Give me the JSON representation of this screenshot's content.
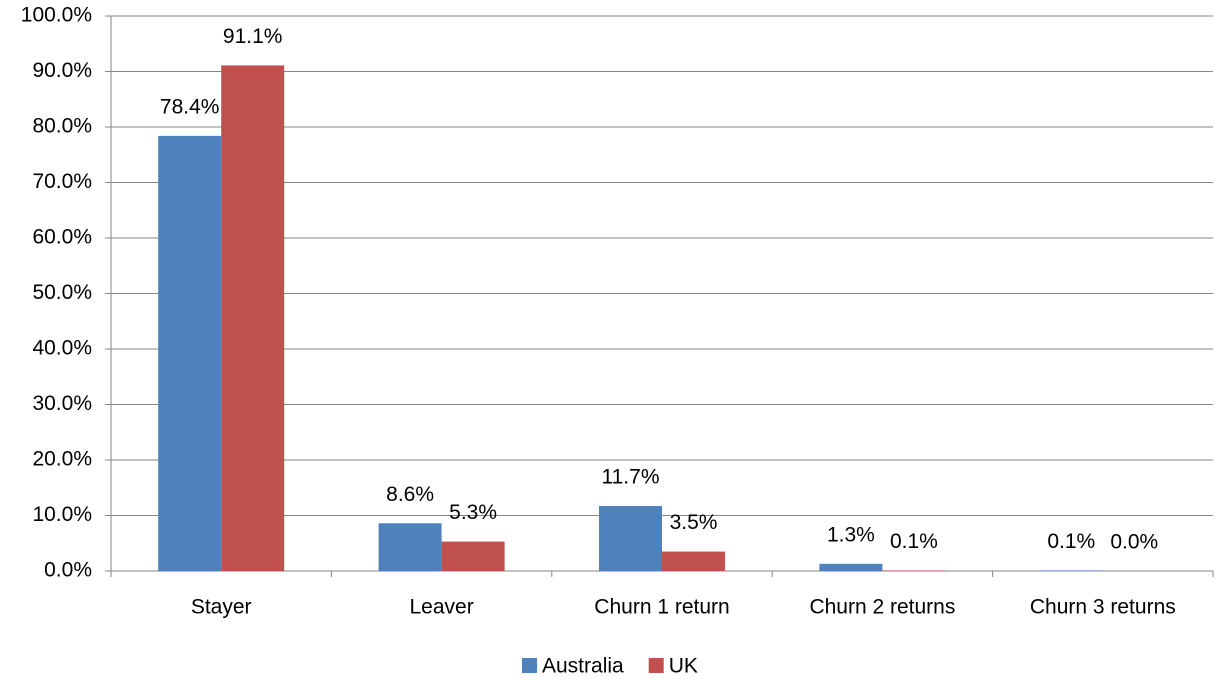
{
  "chart_data": {
    "type": "bar",
    "categories": [
      "Stayer",
      "Leaver",
      "Churn 1 return",
      "Churn 2 returns",
      "Churn 3 returns"
    ],
    "series": [
      {
        "name": "Australia",
        "color": "#4f81bd",
        "values": [
          78.4,
          8.6,
          11.7,
          1.3,
          0.1
        ],
        "value_labels": [
          "78.4%",
          "8.6%",
          "11.7%",
          "1.3%",
          "0.1%"
        ]
      },
      {
        "name": "UK",
        "color": "#c0504d",
        "values": [
          91.1,
          5.3,
          3.5,
          0.1,
          0.0
        ],
        "value_labels": [
          "91.1%",
          "5.3%",
          "3.5%",
          "0.1%",
          "0.0%"
        ]
      }
    ],
    "ylim": [
      0,
      100
    ],
    "yticks": [
      {
        "value": 0,
        "label": "0.0%"
      },
      {
        "value": 10,
        "label": "10.0%"
      },
      {
        "value": 20,
        "label": "20.0%"
      },
      {
        "value": 30,
        "label": "30.0%"
      },
      {
        "value": 40,
        "label": "40.0%"
      },
      {
        "value": 50,
        "label": "50.0%"
      },
      {
        "value": 60,
        "label": "60.0%"
      },
      {
        "value": 70,
        "label": "70.0%"
      },
      {
        "value": 80,
        "label": "80.0%"
      },
      {
        "value": 90,
        "label": "90.0%"
      },
      {
        "value": 100,
        "label": "100.0%"
      }
    ],
    "grid": true,
    "legend": "bottom"
  }
}
